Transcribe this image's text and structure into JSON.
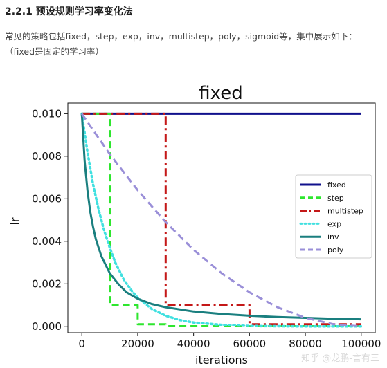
{
  "article": {
    "heading": "2.2.1 预设规则学习率变化法",
    "paragraph_line1": "常见的策略包括fixed，step，exp，inv，multistep，poly，sigmoid等，集中展示如下：",
    "paragraph_line2": "（fixed是固定的学习率）",
    "watermark": "知乎 @龙鹏-言有三"
  },
  "chart_data": {
    "type": "line",
    "title": "fixed",
    "xlabel": "iterations",
    "ylabel": "lr",
    "xlim": [
      -5000,
      105000
    ],
    "ylim": [
      -0.0003,
      0.0105
    ],
    "xticks": [
      0,
      20000,
      40000,
      60000,
      80000,
      100000
    ],
    "xtick_labels": [
      "0",
      "20000",
      "40000",
      "60000",
      "80000",
      "100000"
    ],
    "yticks": [
      0.0,
      0.002,
      0.004,
      0.006,
      0.008,
      0.01
    ],
    "ytick_labels": [
      "0.000",
      "0.002",
      "0.004",
      "0.006",
      "0.008",
      "0.010"
    ],
    "legend_position": "center-right",
    "series": [
      {
        "name": "fixed",
        "color": "#10108c",
        "style": "solid",
        "points": [
          [
            0,
            0.01
          ],
          [
            100000,
            0.01
          ]
        ]
      },
      {
        "name": "step",
        "color": "#2ee62e",
        "style": "dashed",
        "points": [
          [
            0,
            0.01
          ],
          [
            10000,
            0.01
          ],
          [
            10000,
            0.001
          ],
          [
            20000,
            0.001
          ],
          [
            20000,
            0.0001
          ],
          [
            30000,
            0.0001
          ],
          [
            30000,
            1e-05
          ],
          [
            100000,
            1e-05
          ]
        ]
      },
      {
        "name": "multistep",
        "color": "#c41818",
        "style": "dashdot",
        "points": [
          [
            0,
            0.01
          ],
          [
            30000,
            0.01
          ],
          [
            30000,
            0.001
          ],
          [
            60000,
            0.001
          ],
          [
            60000,
            0.0001
          ],
          [
            100000,
            0.0001
          ]
        ]
      },
      {
        "name": "exp",
        "color": "#40e0e0",
        "style": "dotted",
        "points": [
          [
            0,
            0.01
          ],
          [
            2000,
            0.0082
          ],
          [
            4000,
            0.0067
          ],
          [
            6000,
            0.0055
          ],
          [
            8000,
            0.0045
          ],
          [
            10000,
            0.0037
          ],
          [
            12000,
            0.003
          ],
          [
            15000,
            0.0022
          ],
          [
            18000,
            0.00165
          ],
          [
            20000,
            0.00135
          ],
          [
            25000,
            0.00082
          ],
          [
            30000,
            0.0005
          ],
          [
            35000,
            0.0003
          ],
          [
            40000,
            0.00018
          ],
          [
            50000,
            7e-05
          ],
          [
            60000,
            2e-05
          ],
          [
            80000,
            0.0
          ],
          [
            100000,
            0.0
          ]
        ]
      },
      {
        "name": "inv",
        "color": "#1a7f7f",
        "style": "solid",
        "points": [
          [
            0,
            0.01
          ],
          [
            1000,
            0.0078
          ],
          [
            2000,
            0.0064
          ],
          [
            3000,
            0.0054
          ],
          [
            4000,
            0.0047
          ],
          [
            5000,
            0.0041
          ],
          [
            7000,
            0.0033
          ],
          [
            10000,
            0.0025
          ],
          [
            13000,
            0.002
          ],
          [
            16000,
            0.0016
          ],
          [
            20000,
            0.0013
          ],
          [
            25000,
            0.00105
          ],
          [
            30000,
            0.0009
          ],
          [
            40000,
            0.0007
          ],
          [
            50000,
            0.00058
          ],
          [
            60000,
            0.0005
          ],
          [
            70000,
            0.00044
          ],
          [
            80000,
            0.0004
          ],
          [
            90000,
            0.00036
          ],
          [
            100000,
            0.00033
          ]
        ]
      },
      {
        "name": "poly",
        "color": "#9a8fd8",
        "style": "dashed",
        "points": [
          [
            0,
            0.01
          ],
          [
            10000,
            0.0081
          ],
          [
            20000,
            0.0064
          ],
          [
            30000,
            0.0049
          ],
          [
            40000,
            0.0036
          ],
          [
            50000,
            0.0025
          ],
          [
            60000,
            0.0016
          ],
          [
            70000,
            0.0009
          ],
          [
            80000,
            0.0004
          ],
          [
            90000,
            0.0001
          ],
          [
            100000,
            0.0
          ]
        ]
      }
    ]
  }
}
